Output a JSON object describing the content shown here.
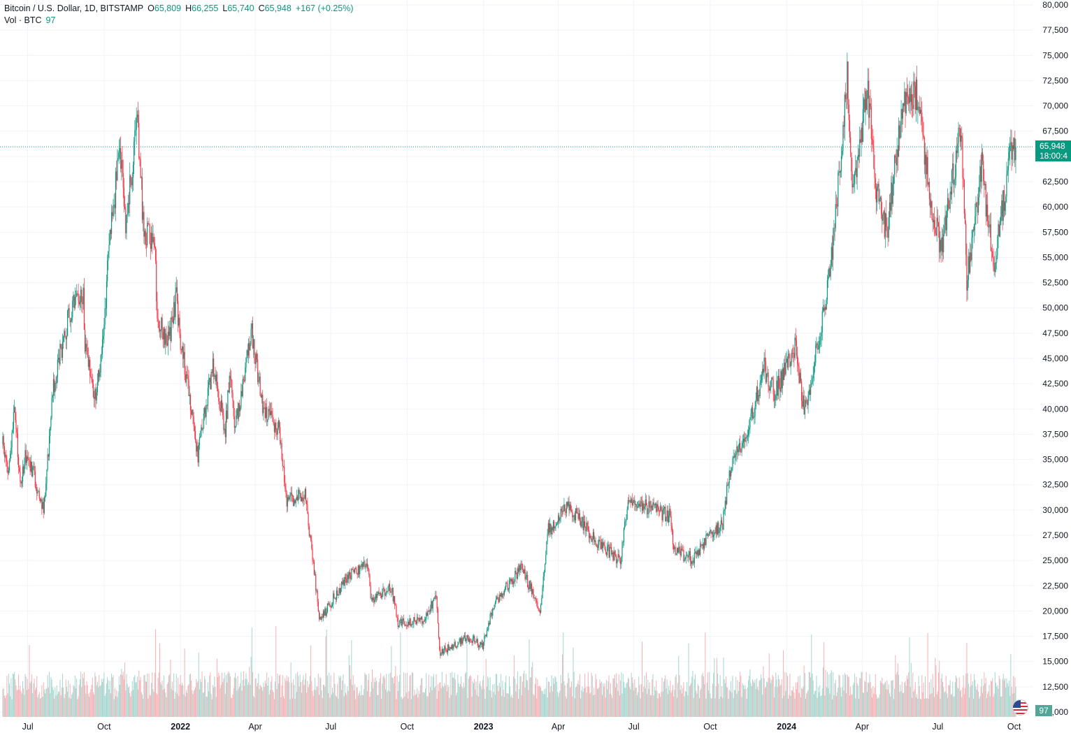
{
  "legend": {
    "symbol": "Bitcoin / U.S. Dollar, 1D, BITSTAMP",
    "open_label": "O",
    "open": "65,809",
    "high_label": "H",
    "high": "66,255",
    "low_label": "L",
    "low": "65,740",
    "close_label": "C",
    "close": "65,948",
    "change": "+167 (+0.25%)",
    "vol_label": "Vol · BTC",
    "vol_value": "97"
  },
  "price_tag": {
    "price": "65,948",
    "countdown": "18:00:4"
  },
  "volume_tag": "97",
  "colors": {
    "up": "#089981",
    "down": "#f23645",
    "up_volume": "#a5d6cf",
    "down_volume": "#f5b1b5",
    "grid": "#f0f3fa"
  },
  "chart_data": {
    "type": "candlestick",
    "interval": "1D",
    "x_range": [
      "2021-06-01",
      "2024-10-03"
    ],
    "y_range": [
      10000,
      80000
    ],
    "y_ticks": [
      80000,
      77500,
      75000,
      72500,
      70000,
      67500,
      65000,
      62500,
      60000,
      57500,
      55000,
      52500,
      50000,
      47500,
      45000,
      42500,
      40000,
      37500,
      35000,
      32500,
      30000,
      27500,
      25000,
      22500,
      20000,
      17500,
      15000,
      12500,
      10000
    ],
    "y_tick_labels": [
      "80,000",
      "77,500",
      "75,000",
      "72,500",
      "70,000",
      "67,500",
      "65,000",
      "62,500",
      "60,000",
      "57,500",
      "55,000",
      "52,500",
      "50,000",
      "47,500",
      "45,000",
      "42,500",
      "40,000",
      "37,500",
      "35,000",
      "32,500",
      "30,000",
      "27,500",
      "25,000",
      "22,500",
      "20,000",
      "17,500",
      "15,000",
      "12,500",
      "10,000"
    ],
    "x_ticks": [
      {
        "label": "Jul",
        "date": "2021-07-01",
        "bold": false
      },
      {
        "label": "Oct",
        "date": "2021-10-01",
        "bold": false
      },
      {
        "label": "2022",
        "date": "2022-01-01",
        "bold": true
      },
      {
        "label": "Apr",
        "date": "2022-04-01",
        "bold": false
      },
      {
        "label": "Jul",
        "date": "2022-07-01",
        "bold": false
      },
      {
        "label": "Oct",
        "date": "2022-10-01",
        "bold": false
      },
      {
        "label": "2023",
        "date": "2023-01-01",
        "bold": true
      },
      {
        "label": "Apr",
        "date": "2023-04-01",
        "bold": false
      },
      {
        "label": "Jul",
        "date": "2023-07-01",
        "bold": false
      },
      {
        "label": "Oct",
        "date": "2023-10-01",
        "bold": false
      },
      {
        "label": "2024",
        "date": "2024-01-01",
        "bold": true
      },
      {
        "label": "Apr",
        "date": "2024-04-01",
        "bold": false
      },
      {
        "label": "Jul",
        "date": "2024-07-01",
        "bold": false
      },
      {
        "label": "Oct",
        "date": "2024-10-01",
        "bold": false
      }
    ],
    "last_price": 65948,
    "close_path": [
      {
        "date": "2021-06-01",
        "close": 36500
      },
      {
        "date": "2021-06-08",
        "close": 33500
      },
      {
        "date": "2021-06-15",
        "close": 40000
      },
      {
        "date": "2021-06-22",
        "close": 32500
      },
      {
        "date": "2021-06-29",
        "close": 35500
      },
      {
        "date": "2021-07-08",
        "close": 33500
      },
      {
        "date": "2021-07-20",
        "close": 29800
      },
      {
        "date": "2021-07-31",
        "close": 41500
      },
      {
        "date": "2021-08-14",
        "close": 47500
      },
      {
        "date": "2021-08-23",
        "close": 50000
      },
      {
        "date": "2021-09-06",
        "close": 51500
      },
      {
        "date": "2021-09-07",
        "close": 46800
      },
      {
        "date": "2021-09-21",
        "close": 41000
      },
      {
        "date": "2021-10-01",
        "close": 48000
      },
      {
        "date": "2021-10-06",
        "close": 55000
      },
      {
        "date": "2021-10-15",
        "close": 62000
      },
      {
        "date": "2021-10-20",
        "close": 66000
      },
      {
        "date": "2021-10-27",
        "close": 58500
      },
      {
        "date": "2021-11-10",
        "close": 68000
      },
      {
        "date": "2021-11-18",
        "close": 57500
      },
      {
        "date": "2021-12-01",
        "close": 57000
      },
      {
        "date": "2021-12-04",
        "close": 49000
      },
      {
        "date": "2021-12-18",
        "close": 46500
      },
      {
        "date": "2021-12-27",
        "close": 51000
      },
      {
        "date": "2022-01-01",
        "close": 47000
      },
      {
        "date": "2022-01-10",
        "close": 42000
      },
      {
        "date": "2022-01-22",
        "close": 35500
      },
      {
        "date": "2022-02-09",
        "close": 44000
      },
      {
        "date": "2022-02-24",
        "close": 38000
      },
      {
        "date": "2022-03-02",
        "close": 44000
      },
      {
        "date": "2022-03-07",
        "close": 38000
      },
      {
        "date": "2022-03-28",
        "close": 47500
      },
      {
        "date": "2022-04-11",
        "close": 40000
      },
      {
        "date": "2022-04-30",
        "close": 38000
      },
      {
        "date": "2022-05-09",
        "close": 31000
      },
      {
        "date": "2022-05-31",
        "close": 31500
      },
      {
        "date": "2022-06-13",
        "close": 22500
      },
      {
        "date": "2022-06-18",
        "close": 19000
      },
      {
        "date": "2022-07-08",
        "close": 21800
      },
      {
        "date": "2022-07-30",
        "close": 24000
      },
      {
        "date": "2022-08-14",
        "close": 24500
      },
      {
        "date": "2022-08-19",
        "close": 21000
      },
      {
        "date": "2022-09-12",
        "close": 22300
      },
      {
        "date": "2022-09-20",
        "close": 18800
      },
      {
        "date": "2022-10-20",
        "close": 19100
      },
      {
        "date": "2022-11-05",
        "close": 21300
      },
      {
        "date": "2022-11-09",
        "close": 15900
      },
      {
        "date": "2022-12-15",
        "close": 17400
      },
      {
        "date": "2022-12-31",
        "close": 16500
      },
      {
        "date": "2023-01-14",
        "close": 20800
      },
      {
        "date": "2023-02-15",
        "close": 24300
      },
      {
        "date": "2023-03-10",
        "close": 20200
      },
      {
        "date": "2023-03-20",
        "close": 28000
      },
      {
        "date": "2023-04-14",
        "close": 30400
      },
      {
        "date": "2023-05-15",
        "close": 27000
      },
      {
        "date": "2023-06-15",
        "close": 25000
      },
      {
        "date": "2023-06-23",
        "close": 30500
      },
      {
        "date": "2023-07-15",
        "close": 30300
      },
      {
        "date": "2023-08-14",
        "close": 29400
      },
      {
        "date": "2023-08-18",
        "close": 26000
      },
      {
        "date": "2023-09-11",
        "close": 25100
      },
      {
        "date": "2023-10-01",
        "close": 27900
      },
      {
        "date": "2023-10-16",
        "close": 28500
      },
      {
        "date": "2023-10-24",
        "close": 33900
      },
      {
        "date": "2023-11-15",
        "close": 37800
      },
      {
        "date": "2023-12-05",
        "close": 44000
      },
      {
        "date": "2023-12-18",
        "close": 41400
      },
      {
        "date": "2024-01-11",
        "close": 46400
      },
      {
        "date": "2024-01-23",
        "close": 39500
      },
      {
        "date": "2024-02-09",
        "close": 47500
      },
      {
        "date": "2024-02-20",
        "close": 52000
      },
      {
        "date": "2024-03-05",
        "close": 63500
      },
      {
        "date": "2024-03-14",
        "close": 73000
      },
      {
        "date": "2024-03-20",
        "close": 62000
      },
      {
        "date": "2024-04-08",
        "close": 71500
      },
      {
        "date": "2024-04-18",
        "close": 61500
      },
      {
        "date": "2024-05-01",
        "close": 57500
      },
      {
        "date": "2024-05-20",
        "close": 70500
      },
      {
        "date": "2024-06-07",
        "close": 71000
      },
      {
        "date": "2024-06-24",
        "close": 60000
      },
      {
        "date": "2024-07-05",
        "close": 55500
      },
      {
        "date": "2024-07-29",
        "close": 68000
      },
      {
        "date": "2024-08-05",
        "close": 53000
      },
      {
        "date": "2024-08-23",
        "close": 64000
      },
      {
        "date": "2024-09-06",
        "close": 54000
      },
      {
        "date": "2024-09-27",
        "close": 65500
      },
      {
        "date": "2024-10-03",
        "close": 65948
      }
    ]
  }
}
